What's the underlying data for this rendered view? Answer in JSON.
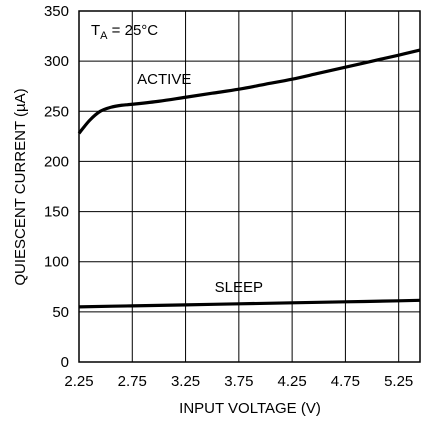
{
  "chart_data": {
    "type": "line",
    "xlabel": "INPUT VOLTAGE (V)",
    "ylabel": "QUIESCENT CURRENT (µA)",
    "xlim": [
      2.25,
      5.45
    ],
    "ylim": [
      0,
      350
    ],
    "x_ticks": [
      "2.25",
      "2.75",
      "3.25",
      "3.75",
      "4.25",
      "4.75",
      "5.25"
    ],
    "y_ticks": [
      "0",
      "50",
      "100",
      "150",
      "200",
      "250",
      "300",
      "350"
    ],
    "grid": true,
    "condition_label": {
      "prefix": "T",
      "sub": "A",
      "suffix": " = 25°C"
    },
    "series": [
      {
        "name": "ACTIVE",
        "x": [
          2.25,
          2.35,
          2.45,
          2.55,
          2.65,
          2.75,
          3.0,
          3.25,
          3.5,
          3.75,
          4.0,
          4.25,
          4.5,
          4.75,
          5.0,
          5.25,
          5.45
        ],
        "y": [
          228,
          241,
          250,
          254,
          256,
          257,
          260,
          264,
          268,
          272,
          277,
          282,
          288,
          294,
          300,
          306,
          311
        ]
      },
      {
        "name": "SLEEP",
        "x": [
          2.25,
          2.75,
          3.25,
          3.75,
          4.25,
          4.75,
          5.25,
          5.45
        ],
        "y": [
          55,
          56,
          57,
          58,
          59,
          60,
          61,
          61.5
        ]
      }
    ]
  }
}
